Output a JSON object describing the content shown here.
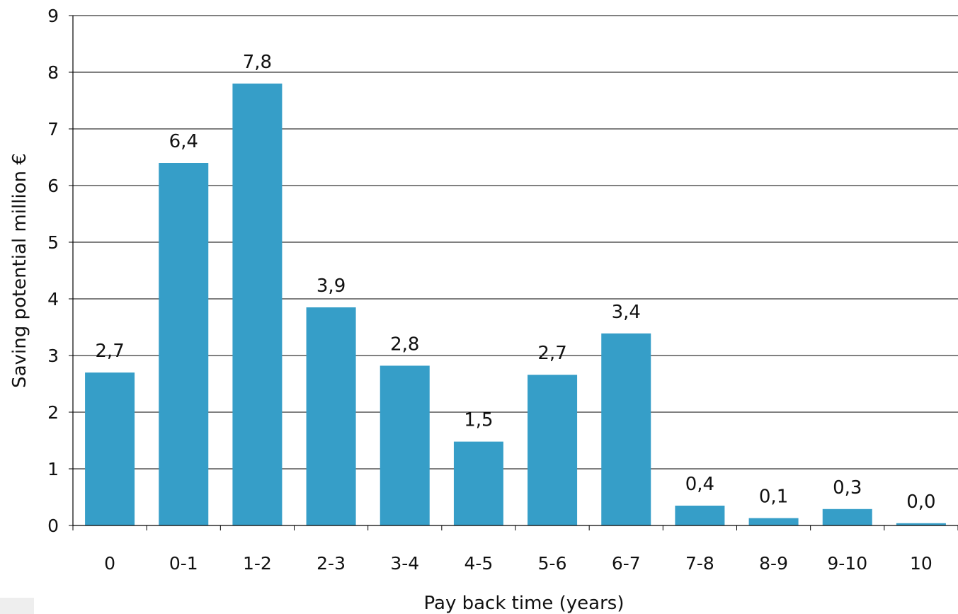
{
  "chart_data": {
    "type": "bar",
    "categories": [
      "0",
      "0-1",
      "1-2",
      "2-3",
      "3-4",
      "4-5",
      "5-6",
      "6-7",
      "7-8",
      "8-9",
      "9-10",
      "10"
    ],
    "values": [
      2.7,
      6.4,
      7.8,
      3.85,
      2.82,
      1.48,
      2.66,
      3.39,
      0.35,
      0.13,
      0.29,
      0.04
    ],
    "data_labels": [
      "2,7",
      "6,4",
      "7,8",
      "3,9",
      "2,8",
      "1,5",
      "2,7",
      "3,4",
      "0,4",
      "0,1",
      "0,3",
      "0,0"
    ],
    "title": "",
    "xlabel": "Pay back time (years)",
    "ylabel": "Saving potential million €",
    "ylim": [
      0,
      9
    ],
    "yticks": [
      "0",
      "1",
      "2",
      "3",
      "4",
      "5",
      "6",
      "7",
      "8",
      "9"
    ],
    "grid": true,
    "legend": "none",
    "colors": {
      "bar": "#369ec8",
      "grid": "#000000",
      "axis": "#000000"
    }
  }
}
